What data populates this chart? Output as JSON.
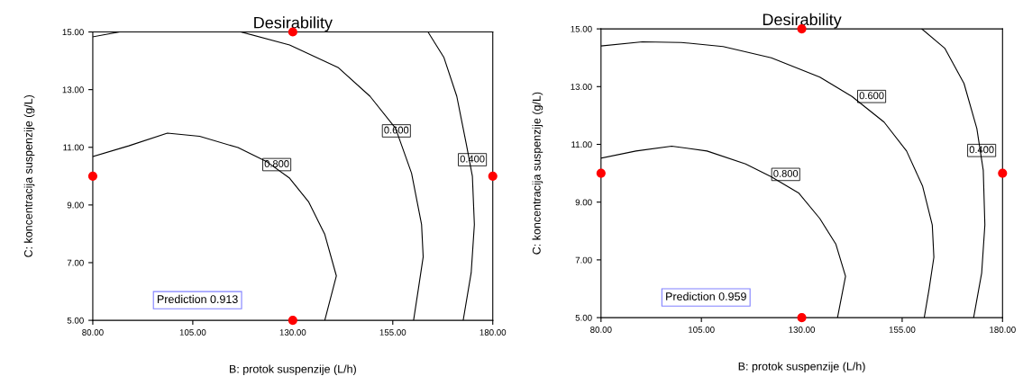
{
  "chart_data": [
    {
      "type": "line",
      "title": "Desirability",
      "xlabel": "B: protok suspenzije (L/h)",
      "ylabel": "C: koncentracija suspenzije (g/L)",
      "xlim": [
        80,
        180
      ],
      "ylim": [
        5,
        15
      ],
      "xticks": [
        {
          "value": 80,
          "label": "80.00"
        },
        {
          "value": 105,
          "label": "105.00"
        },
        {
          "value": 130,
          "label": "130.00"
        },
        {
          "value": 155,
          "label": "155.00"
        },
        {
          "value": 180,
          "label": "180.00"
        }
      ],
      "yticks": [
        {
          "value": 5,
          "label": "5.00"
        },
        {
          "value": 7,
          "label": "7.00"
        },
        {
          "value": 9,
          "label": "9.00"
        },
        {
          "value": 11,
          "label": "11.00"
        },
        {
          "value": 13,
          "label": "13.00"
        },
        {
          "value": 15,
          "label": "15.00"
        }
      ],
      "grid": false,
      "series": [
        {
          "color": "#000000",
          "x": [
            80,
            89.0,
            98.65,
            106.7,
            116.3,
            123.6,
            129.2,
            134.0,
            138.0,
            140.9,
            138.0
          ],
          "values": [
            10.68,
            11.05,
            11.49,
            11.38,
            10.99,
            10.49,
            9.93,
            9.1,
            7.98,
            6.54,
            5.0
          ]
        },
        {
          "color": "#000000",
          "x": [
            117.1,
            129.2,
            141.3,
            149.3,
            155.7,
            159.7,
            162.2,
            162.6,
            161.4,
            160.2
          ],
          "values": [
            15.0,
            14.55,
            13.77,
            12.77,
            11.66,
            10.1,
            8.32,
            7.2,
            6.09,
            5.0
          ]
        },
        {
          "color": "#000000",
          "x": [
            80,
            86.6
          ],
          "values": [
            14.83,
            15.0
          ]
        },
        {
          "color": "#000000",
          "x": [
            163.8,
            167.8,
            171.0,
            173.4,
            174.9,
            175.4,
            174.6,
            172.6
          ],
          "values": [
            15.0,
            14.11,
            12.77,
            11.1,
            10.0,
            8.32,
            6.65,
            5.0
          ]
        },
        {
          "type": "scatter",
          "color": "#ff0000",
          "marker": "circle",
          "x": [
            80,
            130,
            130,
            180
          ],
          "values": [
            10,
            15,
            5,
            10
          ]
        }
      ],
      "annotations": [
        {
          "text": "0.800",
          "x": 126,
          "y": 10.4
        },
        {
          "text": "0.600",
          "x": 155.9,
          "y": 11.57
        },
        {
          "text": "0.400",
          "x": 174.9,
          "y": 10.57
        },
        "Prediction 0.913"
      ]
    },
    {
      "type": "line",
      "title": "Desirability",
      "xlabel": "B: protok suspenzije (L/h)",
      "ylabel": "C: koncentracija suspenzije (g/L)",
      "xlim": [
        80,
        180
      ],
      "ylim": [
        5,
        15
      ],
      "xticks": [
        {
          "value": 80,
          "label": "80.00"
        },
        {
          "value": 105,
          "label": "105.00"
        },
        {
          "value": 130,
          "label": "130.00"
        },
        {
          "value": 155,
          "label": "155.00"
        },
        {
          "value": 180,
          "label": "180.00"
        }
      ],
      "yticks": [
        {
          "value": 5,
          "label": "5.00"
        },
        {
          "value": 7,
          "label": "7.00"
        },
        {
          "value": 9,
          "label": "9.00"
        },
        {
          "value": 11,
          "label": "11.00"
        },
        {
          "value": 13,
          "label": "13.00"
        },
        {
          "value": 15,
          "label": "15.00"
        }
      ],
      "grid": false,
      "series": [
        {
          "color": "#000000",
          "x": [
            80,
            88.7,
            97.6,
            106.4,
            116.0,
            122.4,
            129.2,
            134.5,
            138.5,
            140.9,
            138.9
          ],
          "values": [
            10.52,
            10.77,
            10.94,
            10.77,
            10.32,
            9.88,
            9.32,
            8.43,
            7.54,
            6.43,
            5.0
          ]
        },
        {
          "color": "#000000",
          "x": [
            80,
            90.3,
            100.0,
            110.4,
            122.4,
            134.5,
            142.5,
            150.5,
            156.1,
            160.1,
            162.5,
            162.9,
            161.7,
            160.5
          ],
          "values": [
            14.41,
            14.55,
            14.53,
            14.39,
            14.0,
            13.33,
            12.66,
            11.77,
            10.77,
            9.55,
            8.21,
            7.09,
            5.98,
            5.0
          ]
        },
        {
          "color": "#000000",
          "x": [
            159.9,
            165.6,
            170.4,
            173.6,
            175.2,
            175.6,
            174.8,
            172.8
          ],
          "values": [
            15.0,
            14.33,
            13.11,
            11.55,
            10.1,
            8.21,
            6.54,
            5.0
          ]
        },
        {
          "type": "scatter",
          "color": "#ff0000",
          "marker": "circle",
          "x": [
            80,
            130,
            130,
            180
          ],
          "values": [
            10,
            15,
            5,
            10
          ]
        }
      ],
      "annotations": [
        {
          "text": "0.800",
          "x": 126.0,
          "y": 9.96
        },
        {
          "text": "0.600",
          "x": 147.4,
          "y": 12.66
        },
        {
          "text": "0.400",
          "x": 174.8,
          "y": 10.79
        },
        "Prediction 0.959"
      ]
    }
  ]
}
